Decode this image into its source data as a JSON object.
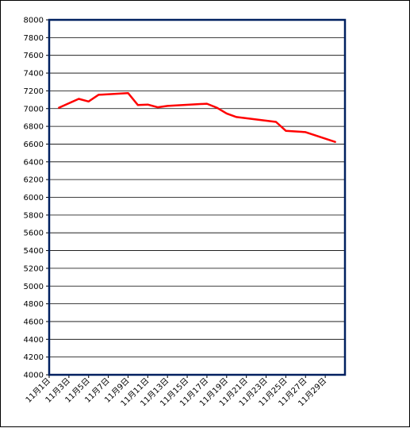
{
  "chart_data": {
    "type": "line",
    "title": "",
    "xlabel": "",
    "ylabel": "",
    "ylim": [
      4000,
      8000
    ],
    "y_ticks": [
      4000,
      4200,
      4400,
      4600,
      4800,
      5000,
      5200,
      5400,
      5600,
      5800,
      6000,
      6200,
      6400,
      6600,
      6800,
      7000,
      7200,
      7400,
      7600,
      7800,
      8000
    ],
    "x_tick_labels": [
      "11月1日",
      "11月3日",
      "11月5日",
      "11月7日",
      "11月9日",
      "11月11日",
      "11月13日",
      "11月15日",
      "11月17日",
      "11月19日",
      "11月21日",
      "11月23日",
      "11月25日",
      "11月27日",
      "11月29日"
    ],
    "grid": true,
    "legend": "none",
    "series": [
      {
        "color": "#ff0000",
        "points": [
          {
            "x": "11月2日",
            "y": 7010
          },
          {
            "x": "11月4日",
            "y": 7110
          },
          {
            "x": "11月5日",
            "y": 7080
          },
          {
            "x": "11月6日",
            "y": 7155
          },
          {
            "x": "11月9日",
            "y": 7175
          },
          {
            "x": "11月10日",
            "y": 7040
          },
          {
            "x": "11月11日",
            "y": 7045
          },
          {
            "x": "11月12日",
            "y": 7015
          },
          {
            "x": "11月13日",
            "y": 7030
          },
          {
            "x": "11月17日",
            "y": 7055
          },
          {
            "x": "11月18日",
            "y": 7010
          },
          {
            "x": "11月19日",
            "y": 6945
          },
          {
            "x": "11月20日",
            "y": 6905
          },
          {
            "x": "11月24日",
            "y": 6850
          },
          {
            "x": "11月25日",
            "y": 6750
          },
          {
            "x": "11月27日",
            "y": 6735
          },
          {
            "x": "11月30日",
            "y": 6625
          }
        ]
      }
    ]
  },
  "colors": {
    "plot_border": "#002060",
    "grid": "#000000",
    "line": "#ff0000"
  }
}
